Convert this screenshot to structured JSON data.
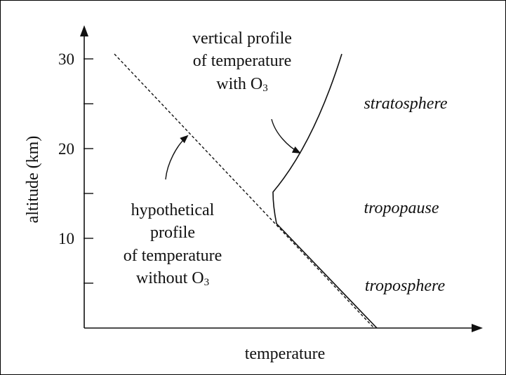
{
  "axes": {
    "x_label": "temperature",
    "y_label": "altitude (km)",
    "y_ticks": [
      {
        "value": 5,
        "label": ""
      },
      {
        "value": 10,
        "label": "10"
      },
      {
        "value": 15,
        "label": ""
      },
      {
        "value": 20,
        "label": "20"
      },
      {
        "value": 25,
        "label": ""
      },
      {
        "value": 30,
        "label": "30"
      }
    ]
  },
  "annotations": {
    "actual_profile": {
      "line1": "vertical profile",
      "line2": "of temperature",
      "line3_prefix": "with O",
      "line3_sub": "3"
    },
    "hypothetical_profile": {
      "line1": "hypothetical",
      "line2": "profile",
      "line3": "of temperature",
      "line4_prefix": "without O",
      "line4_sub": "3"
    }
  },
  "layers": {
    "stratosphere": "stratosphere",
    "tropopause": "tropopause",
    "troposphere": "troposphere"
  },
  "colors": {
    "ink": "#111111",
    "background": "#ffffff"
  }
}
